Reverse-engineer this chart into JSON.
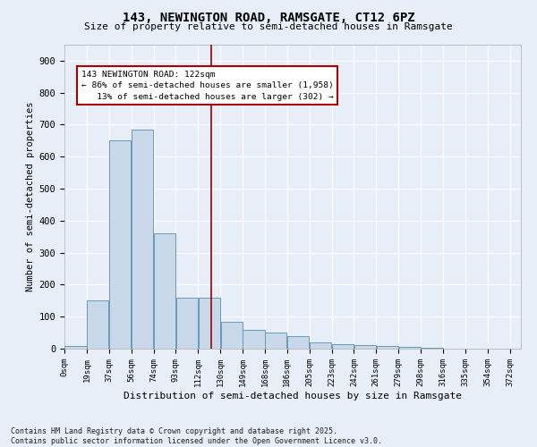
{
  "title_line1": "143, NEWINGTON ROAD, RAMSGATE, CT12 6PZ",
  "title_line2": "Size of property relative to semi-detached houses in Ramsgate",
  "xlabel": "Distribution of semi-detached houses by size in Ramsgate",
  "ylabel": "Number of semi-detached properties",
  "property_size": 122,
  "pct_smaller": 86,
  "count_smaller": 1958,
  "pct_larger": 13,
  "count_larger": 302,
  "bin_width": 18.5,
  "bin_starts": [
    0,
    18.5,
    37,
    55.5,
    74,
    92.5,
    111,
    129.5,
    148,
    166.5,
    185,
    203.5,
    222,
    240.5,
    259,
    277.5,
    296,
    314.5,
    333,
    351.5
  ],
  "bar_values": [
    8,
    150,
    650,
    685,
    360,
    160,
    160,
    85,
    60,
    50,
    38,
    20,
    14,
    11,
    8,
    5,
    3,
    1,
    0,
    0
  ],
  "tick_labels": [
    "0sqm",
    "19sqm",
    "37sqm",
    "56sqm",
    "74sqm",
    "93sqm",
    "112sqm",
    "130sqm",
    "149sqm",
    "168sqm",
    "186sqm",
    "205sqm",
    "223sqm",
    "242sqm",
    "261sqm",
    "279sqm",
    "298sqm",
    "316sqm",
    "335sqm",
    "354sqm",
    "372sqm"
  ],
  "bar_color": "#c9d9ea",
  "bar_edge_color": "#6699bb",
  "vline_color": "#990000",
  "annotation_box_edge_color": "#aa0000",
  "annotation_bg": "#ffffff",
  "background_color": "#e8eef8",
  "grid_color": "#ffffff",
  "ylim": [
    0,
    950
  ],
  "yticks": [
    0,
    100,
    200,
    300,
    400,
    500,
    600,
    700,
    800,
    900
  ],
  "footer_line1": "Contains HM Land Registry data © Crown copyright and database right 2025.",
  "footer_line2": "Contains public sector information licensed under the Open Government Licence v3.0."
}
